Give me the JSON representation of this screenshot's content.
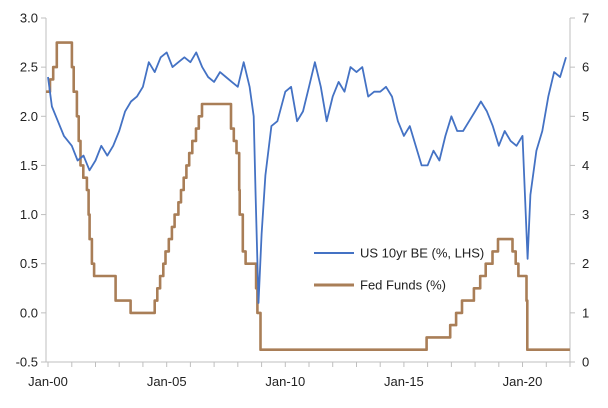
{
  "chart_data": {
    "type": "line",
    "title": "",
    "x_axis": {
      "type": "date",
      "range": [
        "1999-12-01",
        "2022-01-01"
      ],
      "tick_labels": [
        "Jan-00",
        "Jan-05",
        "Jan-10",
        "Jan-15",
        "Jan-20"
      ],
      "tick_values": [
        "2000-01-01",
        "2005-01-01",
        "2010-01-01",
        "2015-01-01",
        "2020-01-01"
      ]
    },
    "y_left": {
      "range": [
        -0.5,
        3.0
      ],
      "ticks": [
        -0.5,
        0.0,
        0.5,
        1.0,
        1.5,
        2.0,
        2.5,
        3.0
      ],
      "tick_labels": [
        "-0.5",
        "0.0",
        "0.5",
        "1.0",
        "1.5",
        "2.0",
        "2.5",
        "3.0"
      ]
    },
    "y_right": {
      "range": [
        0,
        7
      ],
      "ticks": [
        0,
        1,
        2,
        3,
        4,
        5,
        6,
        7
      ],
      "tick_labels": [
        "0",
        "1",
        "2",
        "3",
        "4",
        "5",
        "6",
        "7"
      ]
    },
    "grid": false,
    "legend_position": "center-right",
    "series": [
      {
        "name": "US 10yr BE (%, LHS)",
        "axis": "left",
        "color": "#4472C4",
        "x": [
          "2000-01-01",
          "2000-03-01",
          "2000-06-01",
          "2000-09-01",
          "2001-01-01",
          "2001-04-01",
          "2001-07-01",
          "2001-10-01",
          "2002-01-01",
          "2002-04-01",
          "2002-07-01",
          "2002-10-01",
          "2003-01-01",
          "2003-04-01",
          "2003-07-01",
          "2003-10-01",
          "2004-01-01",
          "2004-04-01",
          "2004-07-01",
          "2004-10-01",
          "2005-01-01",
          "2005-04-01",
          "2005-07-01",
          "2005-10-01",
          "2006-01-01",
          "2006-04-01",
          "2006-07-01",
          "2006-10-01",
          "2007-01-01",
          "2007-04-01",
          "2007-07-01",
          "2007-10-01",
          "2008-01-01",
          "2008-04-01",
          "2008-07-01",
          "2008-09-01",
          "2008-10-01",
          "2008-11-15",
          "2009-01-01",
          "2009-03-01",
          "2009-06-01",
          "2009-09-01",
          "2010-01-01",
          "2010-04-01",
          "2010-07-01",
          "2010-10-01",
          "2011-01-01",
          "2011-04-01",
          "2011-07-01",
          "2011-10-01",
          "2012-01-01",
          "2012-04-01",
          "2012-07-01",
          "2012-10-01",
          "2013-01-01",
          "2013-04-01",
          "2013-07-01",
          "2013-10-01",
          "2014-01-01",
          "2014-04-01",
          "2014-07-01",
          "2014-10-01",
          "2015-01-01",
          "2015-04-01",
          "2015-07-01",
          "2015-10-01",
          "2016-01-01",
          "2016-04-01",
          "2016-07-01",
          "2016-10-01",
          "2017-01-01",
          "2017-04-01",
          "2017-07-01",
          "2017-10-01",
          "2018-01-01",
          "2018-04-01",
          "2018-07-01",
          "2018-10-01",
          "2019-01-01",
          "2019-04-01",
          "2019-07-01",
          "2019-10-01",
          "2020-01-01",
          "2020-03-20",
          "2020-05-01",
          "2020-08-01",
          "2020-11-01",
          "2021-02-01",
          "2021-05-01",
          "2021-08-01",
          "2021-11-01"
        ],
        "y": [
          2.4,
          2.1,
          1.95,
          1.8,
          1.7,
          1.55,
          1.6,
          1.45,
          1.55,
          1.7,
          1.6,
          1.7,
          1.85,
          2.05,
          2.15,
          2.2,
          2.3,
          2.55,
          2.45,
          2.6,
          2.65,
          2.5,
          2.55,
          2.6,
          2.55,
          2.65,
          2.5,
          2.4,
          2.35,
          2.45,
          2.4,
          2.35,
          2.3,
          2.55,
          2.3,
          2.0,
          1.2,
          0.1,
          0.8,
          1.4,
          1.9,
          1.95,
          2.25,
          2.3,
          1.95,
          2.05,
          2.3,
          2.55,
          2.3,
          1.95,
          2.2,
          2.35,
          2.25,
          2.5,
          2.45,
          2.5,
          2.2,
          2.25,
          2.25,
          2.3,
          2.2,
          1.95,
          1.8,
          1.9,
          1.7,
          1.5,
          1.5,
          1.65,
          1.55,
          1.8,
          2.0,
          1.85,
          1.85,
          1.95,
          2.05,
          2.15,
          2.05,
          1.9,
          1.7,
          1.85,
          1.75,
          1.7,
          1.8,
          0.55,
          1.2,
          1.65,
          1.85,
          2.2,
          2.45,
          2.4,
          2.6
        ]
      },
      {
        "name": "Fed Funds (%)",
        "axis": "right",
        "color": "#A97E57",
        "step": true,
        "x": [
          "1999-12-01",
          "2000-02-01",
          "2000-03-21",
          "2000-05-16",
          "2001-01-03",
          "2001-01-31",
          "2001-03-20",
          "2001-04-18",
          "2001-05-15",
          "2001-06-27",
          "2001-08-21",
          "2001-09-17",
          "2001-10-02",
          "2001-11-06",
          "2001-12-11",
          "2002-11-06",
          "2003-06-25",
          "2004-06-30",
          "2004-08-10",
          "2004-09-21",
          "2004-11-10",
          "2004-12-14",
          "2005-02-02",
          "2005-03-22",
          "2005-05-03",
          "2005-06-30",
          "2005-08-09",
          "2005-09-20",
          "2005-11-01",
          "2005-12-13",
          "2006-01-31",
          "2006-03-28",
          "2006-05-10",
          "2006-06-29",
          "2007-09-18",
          "2007-10-31",
          "2007-12-11",
          "2008-01-22",
          "2008-01-30",
          "2008-03-18",
          "2008-04-30",
          "2008-10-08",
          "2008-10-29",
          "2008-12-16",
          "2015-12-16",
          "2016-12-14",
          "2017-03-15",
          "2017-06-14",
          "2017-12-13",
          "2018-03-21",
          "2018-06-13",
          "2018-09-26",
          "2018-12-19",
          "2019-07-31",
          "2019-09-18",
          "2019-10-30",
          "2020-03-03",
          "2020-03-15",
          "2021-12-31"
        ],
        "y": [
          5.5,
          5.75,
          6.0,
          6.5,
          6.0,
          5.5,
          5.0,
          4.5,
          4.0,
          3.75,
          3.5,
          3.0,
          2.5,
          2.0,
          1.75,
          1.25,
          1.0,
          1.25,
          1.5,
          1.75,
          2.0,
          2.25,
          2.5,
          2.75,
          3.0,
          3.25,
          3.5,
          3.75,
          4.0,
          4.25,
          4.5,
          4.75,
          5.0,
          5.25,
          4.75,
          4.5,
          4.25,
          3.5,
          3.0,
          2.25,
          2.0,
          1.5,
          1.0,
          0.25,
          0.5,
          0.75,
          1.0,
          1.25,
          1.5,
          1.75,
          2.0,
          2.25,
          2.5,
          2.25,
          2.0,
          1.75,
          1.25,
          0.25,
          0.25
        ]
      }
    ]
  }
}
